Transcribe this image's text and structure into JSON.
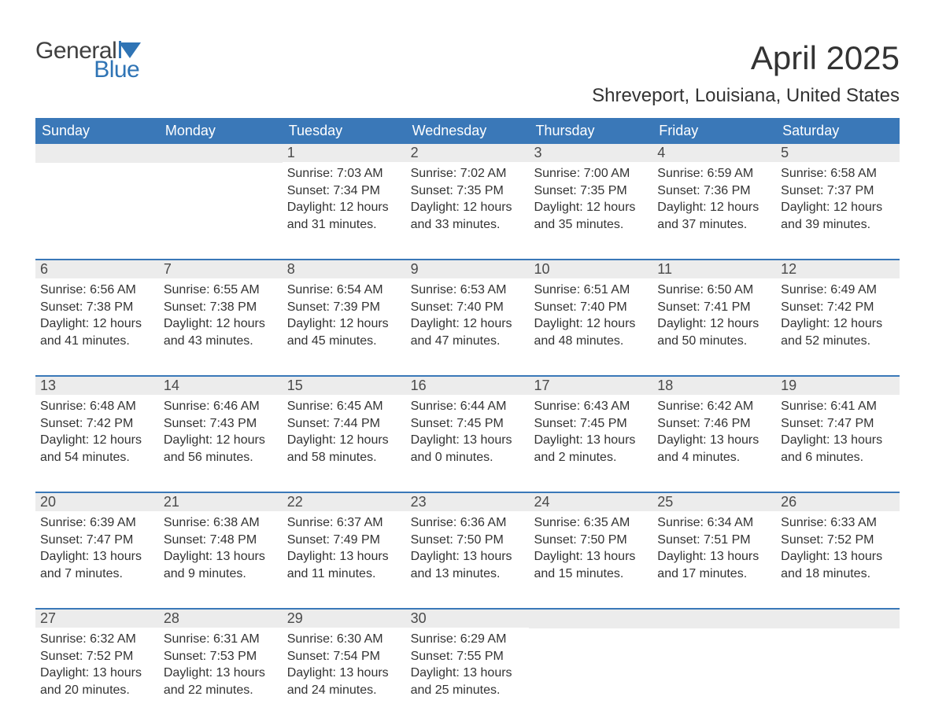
{
  "logo": {
    "text1": "General",
    "text2": "Blue",
    "icon_color": "#2f74b5",
    "text1_color": "#404040"
  },
  "title": "April 2025",
  "subtitle": "Shreveport, Louisiana, United States",
  "colors": {
    "header_bg": "#3a78b8",
    "header_text": "#ffffff",
    "daynum_bg": "#ececec",
    "daynum_text": "#4a4a4a",
    "body_text": "#333333",
    "week_border": "#3a78b8",
    "page_bg": "#ffffff"
  },
  "typography": {
    "title_fontsize": 42,
    "subtitle_fontsize": 24,
    "dayheader_fontsize": 18,
    "daynum_fontsize": 18,
    "body_fontsize": 16,
    "logo_fontsize": 30
  },
  "layout": {
    "columns": 7,
    "rows": 5,
    "first_day_column_index": 2
  },
  "day_headers": [
    "Sunday",
    "Monday",
    "Tuesday",
    "Wednesday",
    "Thursday",
    "Friday",
    "Saturday"
  ],
  "weeks": [
    [
      null,
      null,
      {
        "n": "1",
        "sunrise": "Sunrise: 7:03 AM",
        "sunset": "Sunset: 7:34 PM",
        "dl1": "Daylight: 12 hours",
        "dl2": "and 31 minutes."
      },
      {
        "n": "2",
        "sunrise": "Sunrise: 7:02 AM",
        "sunset": "Sunset: 7:35 PM",
        "dl1": "Daylight: 12 hours",
        "dl2": "and 33 minutes."
      },
      {
        "n": "3",
        "sunrise": "Sunrise: 7:00 AM",
        "sunset": "Sunset: 7:35 PM",
        "dl1": "Daylight: 12 hours",
        "dl2": "and 35 minutes."
      },
      {
        "n": "4",
        "sunrise": "Sunrise: 6:59 AM",
        "sunset": "Sunset: 7:36 PM",
        "dl1": "Daylight: 12 hours",
        "dl2": "and 37 minutes."
      },
      {
        "n": "5",
        "sunrise": "Sunrise: 6:58 AM",
        "sunset": "Sunset: 7:37 PM",
        "dl1": "Daylight: 12 hours",
        "dl2": "and 39 minutes."
      }
    ],
    [
      {
        "n": "6",
        "sunrise": "Sunrise: 6:56 AM",
        "sunset": "Sunset: 7:38 PM",
        "dl1": "Daylight: 12 hours",
        "dl2": "and 41 minutes."
      },
      {
        "n": "7",
        "sunrise": "Sunrise: 6:55 AM",
        "sunset": "Sunset: 7:38 PM",
        "dl1": "Daylight: 12 hours",
        "dl2": "and 43 minutes."
      },
      {
        "n": "8",
        "sunrise": "Sunrise: 6:54 AM",
        "sunset": "Sunset: 7:39 PM",
        "dl1": "Daylight: 12 hours",
        "dl2": "and 45 minutes."
      },
      {
        "n": "9",
        "sunrise": "Sunrise: 6:53 AM",
        "sunset": "Sunset: 7:40 PM",
        "dl1": "Daylight: 12 hours",
        "dl2": "and 47 minutes."
      },
      {
        "n": "10",
        "sunrise": "Sunrise: 6:51 AM",
        "sunset": "Sunset: 7:40 PM",
        "dl1": "Daylight: 12 hours",
        "dl2": "and 48 minutes."
      },
      {
        "n": "11",
        "sunrise": "Sunrise: 6:50 AM",
        "sunset": "Sunset: 7:41 PM",
        "dl1": "Daylight: 12 hours",
        "dl2": "and 50 minutes."
      },
      {
        "n": "12",
        "sunrise": "Sunrise: 6:49 AM",
        "sunset": "Sunset: 7:42 PM",
        "dl1": "Daylight: 12 hours",
        "dl2": "and 52 minutes."
      }
    ],
    [
      {
        "n": "13",
        "sunrise": "Sunrise: 6:48 AM",
        "sunset": "Sunset: 7:42 PM",
        "dl1": "Daylight: 12 hours",
        "dl2": "and 54 minutes."
      },
      {
        "n": "14",
        "sunrise": "Sunrise: 6:46 AM",
        "sunset": "Sunset: 7:43 PM",
        "dl1": "Daylight: 12 hours",
        "dl2": "and 56 minutes."
      },
      {
        "n": "15",
        "sunrise": "Sunrise: 6:45 AM",
        "sunset": "Sunset: 7:44 PM",
        "dl1": "Daylight: 12 hours",
        "dl2": "and 58 minutes."
      },
      {
        "n": "16",
        "sunrise": "Sunrise: 6:44 AM",
        "sunset": "Sunset: 7:45 PM",
        "dl1": "Daylight: 13 hours",
        "dl2": "and 0 minutes."
      },
      {
        "n": "17",
        "sunrise": "Sunrise: 6:43 AM",
        "sunset": "Sunset: 7:45 PM",
        "dl1": "Daylight: 13 hours",
        "dl2": "and 2 minutes."
      },
      {
        "n": "18",
        "sunrise": "Sunrise: 6:42 AM",
        "sunset": "Sunset: 7:46 PM",
        "dl1": "Daylight: 13 hours",
        "dl2": "and 4 minutes."
      },
      {
        "n": "19",
        "sunrise": "Sunrise: 6:41 AM",
        "sunset": "Sunset: 7:47 PM",
        "dl1": "Daylight: 13 hours",
        "dl2": "and 6 minutes."
      }
    ],
    [
      {
        "n": "20",
        "sunrise": "Sunrise: 6:39 AM",
        "sunset": "Sunset: 7:47 PM",
        "dl1": "Daylight: 13 hours",
        "dl2": "and 7 minutes."
      },
      {
        "n": "21",
        "sunrise": "Sunrise: 6:38 AM",
        "sunset": "Sunset: 7:48 PM",
        "dl1": "Daylight: 13 hours",
        "dl2": "and 9 minutes."
      },
      {
        "n": "22",
        "sunrise": "Sunrise: 6:37 AM",
        "sunset": "Sunset: 7:49 PM",
        "dl1": "Daylight: 13 hours",
        "dl2": "and 11 minutes."
      },
      {
        "n": "23",
        "sunrise": "Sunrise: 6:36 AM",
        "sunset": "Sunset: 7:50 PM",
        "dl1": "Daylight: 13 hours",
        "dl2": "and 13 minutes."
      },
      {
        "n": "24",
        "sunrise": "Sunrise: 6:35 AM",
        "sunset": "Sunset: 7:50 PM",
        "dl1": "Daylight: 13 hours",
        "dl2": "and 15 minutes."
      },
      {
        "n": "25",
        "sunrise": "Sunrise: 6:34 AM",
        "sunset": "Sunset: 7:51 PM",
        "dl1": "Daylight: 13 hours",
        "dl2": "and 17 minutes."
      },
      {
        "n": "26",
        "sunrise": "Sunrise: 6:33 AM",
        "sunset": "Sunset: 7:52 PM",
        "dl1": "Daylight: 13 hours",
        "dl2": "and 18 minutes."
      }
    ],
    [
      {
        "n": "27",
        "sunrise": "Sunrise: 6:32 AM",
        "sunset": "Sunset: 7:52 PM",
        "dl1": "Daylight: 13 hours",
        "dl2": "and 20 minutes."
      },
      {
        "n": "28",
        "sunrise": "Sunrise: 6:31 AM",
        "sunset": "Sunset: 7:53 PM",
        "dl1": "Daylight: 13 hours",
        "dl2": "and 22 minutes."
      },
      {
        "n": "29",
        "sunrise": "Sunrise: 6:30 AM",
        "sunset": "Sunset: 7:54 PM",
        "dl1": "Daylight: 13 hours",
        "dl2": "and 24 minutes."
      },
      {
        "n": "30",
        "sunrise": "Sunrise: 6:29 AM",
        "sunset": "Sunset: 7:55 PM",
        "dl1": "Daylight: 13 hours",
        "dl2": "and 25 minutes."
      },
      null,
      null,
      null
    ]
  ]
}
